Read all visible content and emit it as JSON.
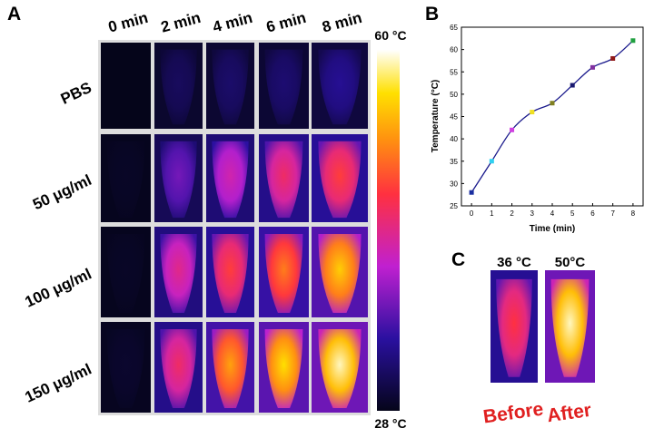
{
  "panel_a": {
    "label": "A",
    "columns": [
      "0 min",
      "2 min",
      "4 min",
      "6 min",
      "8 min"
    ],
    "rows": [
      "PBS",
      "50 μg/ml",
      "100 μg/ml",
      "150 μg/ml"
    ],
    "colorbar_max": "60 °C",
    "colorbar_min": "28 °C"
  },
  "chart_data": {
    "type": "line",
    "panel_label": "B",
    "x": [
      0,
      1,
      2,
      3,
      4,
      5,
      6,
      7,
      8
    ],
    "series": [
      {
        "color": "#1a1a8c",
        "values": [
          28,
          35,
          42,
          46,
          48,
          52,
          56,
          58,
          62
        ],
        "marker_colors": [
          "#1a2ea0",
          "#30d0f0",
          "#d040e0",
          "#f0e020",
          "#808020",
          "#1a1a70",
          "#8030a0",
          "#901818",
          "#20a040"
        ]
      }
    ],
    "xlabel": "Time (min)",
    "ylabel": "Temperature (°C)",
    "xlim": [
      -0.5,
      8.5
    ],
    "ylim": [
      25,
      65
    ],
    "xticks": [
      0,
      1,
      2,
      3,
      4,
      5,
      6,
      7,
      8
    ],
    "yticks": [
      25,
      30,
      35,
      40,
      45,
      50,
      55,
      60,
      65
    ]
  },
  "panel_c": {
    "label": "C",
    "images": [
      {
        "temperature": "36 °C",
        "caption": "Before"
      },
      {
        "temperature": "50°C",
        "caption": "After"
      }
    ]
  }
}
